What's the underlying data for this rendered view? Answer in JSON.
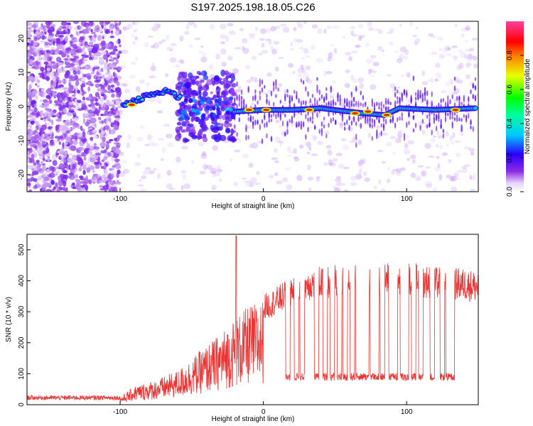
{
  "figure_title": "S197.2025.198.18.05.C26",
  "chart_data": [
    {
      "type": "heatmap",
      "title": "S197.2025.198.18.05.C26",
      "xlabel": "Height of straight line (km)",
      "ylabel": "Frequency (Hz)",
      "xlim": [
        -165,
        150
      ],
      "ylim": [
        -25,
        25
      ],
      "xticks": [
        -100,
        0,
        100
      ],
      "yticks": [
        -20,
        -10,
        0,
        10,
        20
      ],
      "colorbar": {
        "label": "Normalized spectral amplitude",
        "range": [
          0,
          1
        ],
        "ticks": [
          0.0,
          0.2,
          0.4,
          0.6,
          0.8
        ],
        "colormap": "rainbow (white-purple-blue-cyan-green-yellow-red-magenta)"
      },
      "features": {
        "noise_region_x": [
          -165,
          -100
        ],
        "ascending_ridge": [
          [
            -98,
            0.5
          ],
          [
            -88,
            2
          ],
          [
            -80,
            3.5
          ],
          [
            -72,
            4
          ],
          [
            -66,
            4.5
          ],
          [
            -60,
            3
          ]
        ],
        "transition_region_x": [
          -60,
          -20
        ],
        "flat_ridge": [
          [
            -20,
            -1.5
          ],
          [
            0,
            -1
          ],
          [
            20,
            -1
          ],
          [
            40,
            -0.5
          ],
          [
            60,
            -1.5
          ],
          [
            70,
            -2
          ],
          [
            85,
            -2.5
          ],
          [
            95,
            -0.5
          ],
          [
            120,
            -1
          ],
          [
            148,
            -0.5
          ]
        ],
        "high_amplitude_spots": [
          [
            -92,
            0.5
          ],
          [
            2,
            -1
          ],
          [
            32,
            -1
          ],
          [
            64,
            -2
          ],
          [
            73,
            -1.5
          ],
          [
            86,
            -2.5
          ],
          [
            134,
            -1
          ],
          [
            -10,
            -1
          ]
        ]
      }
    },
    {
      "type": "line",
      "xlabel": "Height of straight line (km)",
      "ylabel": "SNR (10 * v/v)",
      "xlim": [
        -165,
        150
      ],
      "ylim": [
        0,
        550
      ],
      "xticks": [
        -100,
        0,
        100
      ],
      "yticks": [
        0,
        100,
        200,
        300,
        400,
        500
      ],
      "color": "#ee3333",
      "envelope": [
        [
          -165,
          25
        ],
        [
          -100,
          25
        ],
        [
          -90,
          60
        ],
        [
          -75,
          80
        ],
        [
          -60,
          110
        ],
        [
          -45,
          170
        ],
        [
          -30,
          230
        ],
        [
          -20,
          280
        ],
        [
          -10,
          320
        ],
        [
          0,
          340
        ],
        [
          5,
          350
        ],
        [
          15,
          380
        ],
        [
          20,
          400
        ],
        [
          30,
          420
        ],
        [
          45,
          430
        ],
        [
          60,
          435
        ],
        [
          80,
          440
        ],
        [
          100,
          440
        ],
        [
          120,
          425
        ],
        [
          140,
          420
        ],
        [
          150,
          410
        ]
      ],
      "peak": {
        "x": -19,
        "y": 545
      },
      "dropouts_x": [
        17,
        23,
        27,
        37,
        43,
        48,
        53,
        57,
        62,
        66,
        69,
        72,
        76,
        79,
        83,
        89,
        92,
        97,
        100,
        105,
        110,
        118,
        125,
        129,
        132
      ],
      "dropout_level": 90
    }
  ]
}
